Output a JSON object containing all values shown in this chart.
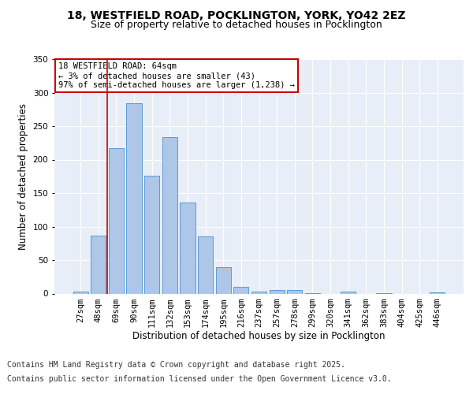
{
  "title_line1": "18, WESTFIELD ROAD, POCKLINGTON, YORK, YO42 2EZ",
  "title_line2": "Size of property relative to detached houses in Pocklington",
  "xlabel": "Distribution of detached houses by size in Pocklington",
  "ylabel": "Number of detached properties",
  "categories": [
    "27sqm",
    "48sqm",
    "69sqm",
    "90sqm",
    "111sqm",
    "132sqm",
    "153sqm",
    "174sqm",
    "195sqm",
    "216sqm",
    "237sqm",
    "257sqm",
    "278sqm",
    "299sqm",
    "320sqm",
    "341sqm",
    "362sqm",
    "383sqm",
    "404sqm",
    "425sqm",
    "446sqm"
  ],
  "values": [
    3,
    86,
    217,
    284,
    176,
    233,
    136,
    85,
    40,
    10,
    3,
    5,
    5,
    1,
    0,
    3,
    0,
    1,
    0,
    0,
    2
  ],
  "bar_color": "#aec6e8",
  "bar_edge_color": "#5b9bd5",
  "red_line_x": 1.5,
  "annotation_title": "18 WESTFIELD ROAD: 64sqm",
  "annotation_line2": "← 3% of detached houses are smaller (43)",
  "annotation_line3": "97% of semi-detached houses are larger (1,238) →",
  "annotation_box_color": "#ffffff",
  "annotation_box_edge": "#cc0000",
  "footnote_line1": "Contains HM Land Registry data © Crown copyright and database right 2025.",
  "footnote_line2": "Contains public sector information licensed under the Open Government Licence v3.0.",
  "ylim": [
    0,
    350
  ],
  "yticks": [
    0,
    50,
    100,
    150,
    200,
    250,
    300,
    350
  ],
  "background_color": "#e8eef7",
  "grid_color": "#ffffff",
  "title_fontsize": 10,
  "subtitle_fontsize": 9,
  "axis_label_fontsize": 8.5,
  "tick_fontsize": 7.5,
  "footnote_fontsize": 7
}
